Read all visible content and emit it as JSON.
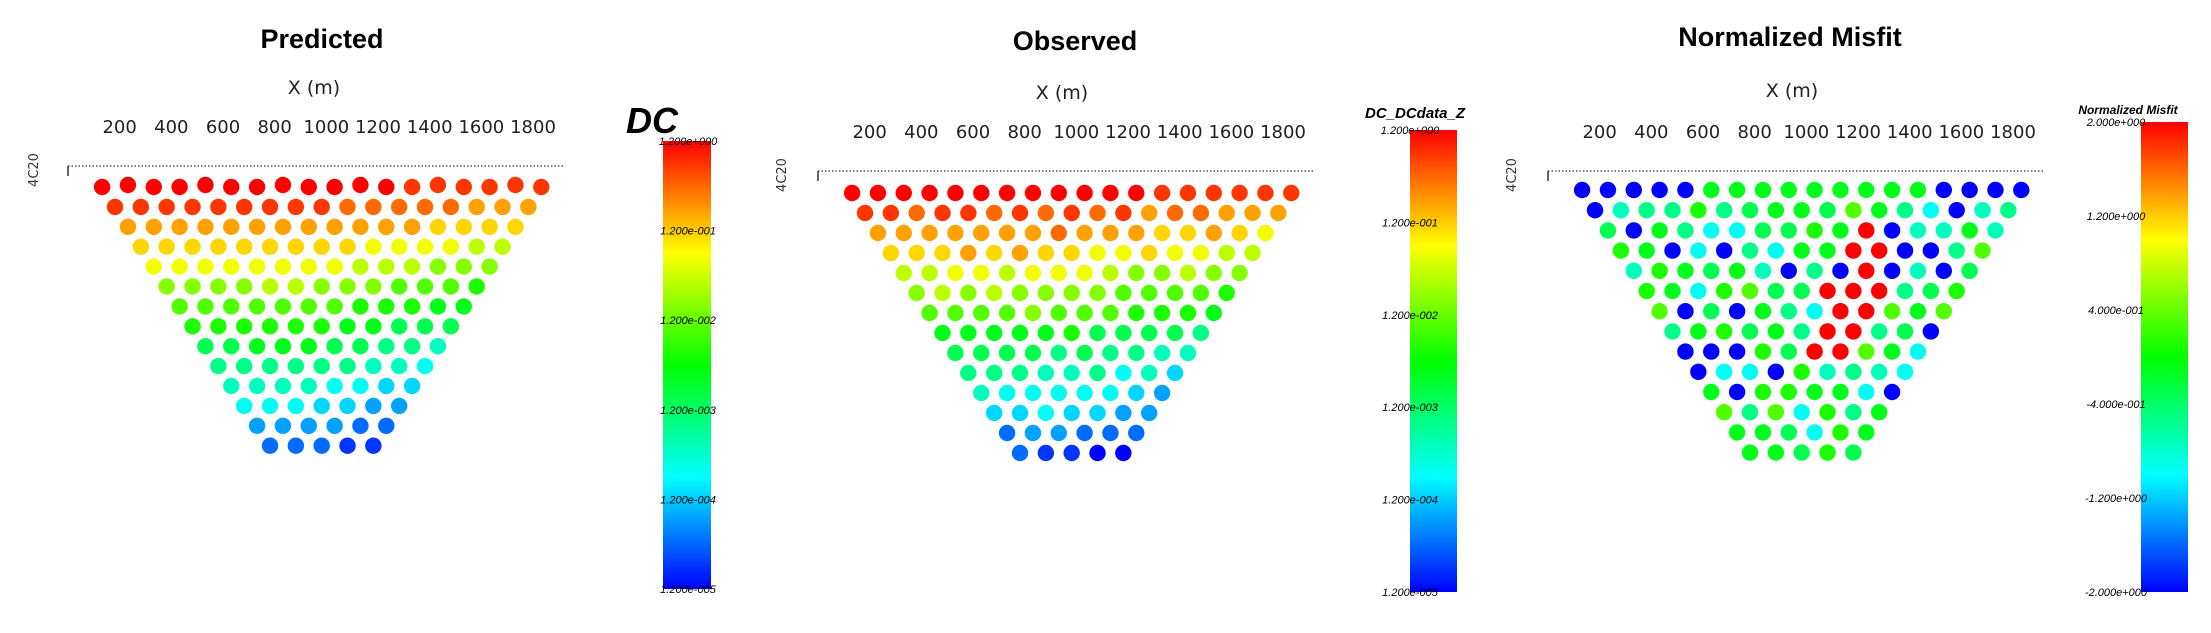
{
  "chart_data": [
    {
      "type": "scatter",
      "title": "Predicted",
      "xlabel": "X (m)",
      "x_ticks": [
        "200",
        "400",
        "600",
        "800",
        "1000",
        "1200",
        "1400",
        "1600",
        "1800"
      ],
      "xlim": [
        0,
        2000
      ],
      "y_fragment": "4C20",
      "colorbar": {
        "title": "DC",
        "scale": "log",
        "ticks": [
          "1.200e+000",
          "1.200e-001",
          "1.200e-002",
          "1.200e-003",
          "1.200e-004",
          "1.200e-005"
        ]
      },
      "levels": 20,
      "colormap": [
        "#0000ff",
        "#00ffff",
        "#00ff00",
        "#ffff00",
        "#ff0000"
      ],
      "field": "predicted"
    },
    {
      "type": "scatter",
      "title": "Observed",
      "xlabel": "X (m)",
      "x_ticks": [
        "200",
        "400",
        "600",
        "800",
        "1000",
        "1200",
        "1400",
        "1600",
        "1800"
      ],
      "xlim": [
        0,
        2000
      ],
      "y_fragment": "4C20",
      "colorbar": {
        "title": "DC_DCdata_Z",
        "scale": "log",
        "ticks": [
          "1.200e+000",
          "1.200e-001",
          "1.200e-002",
          "1.200e-003",
          "1.200e-004",
          "1.200e-005"
        ]
      },
      "levels": 20,
      "colormap": [
        "#0000ff",
        "#00ffff",
        "#00ff00",
        "#ffff00",
        "#ff0000"
      ],
      "field": "observed"
    },
    {
      "type": "scatter",
      "title": "Normalized Misfit",
      "xlabel": "X (m)",
      "x_ticks": [
        "200",
        "400",
        "600",
        "800",
        "1000",
        "1200",
        "1400",
        "1600",
        "1800"
      ],
      "xlim": [
        0,
        2000
      ],
      "y_fragment": "4C20",
      "colorbar": {
        "title": "Normalized Misfit",
        "scale": "linear",
        "ticks": [
          "2.000e+000",
          "1.200e+000",
          "4.000e-001",
          "-4.000e-001",
          "-1.200e+000",
          "-2.000e+000"
        ]
      },
      "levels": 20,
      "colormap": [
        "#0000ff",
        "#00ffff",
        "#00ff00",
        "#ffff00",
        "#ff0000"
      ],
      "field": "misfit"
    }
  ]
}
